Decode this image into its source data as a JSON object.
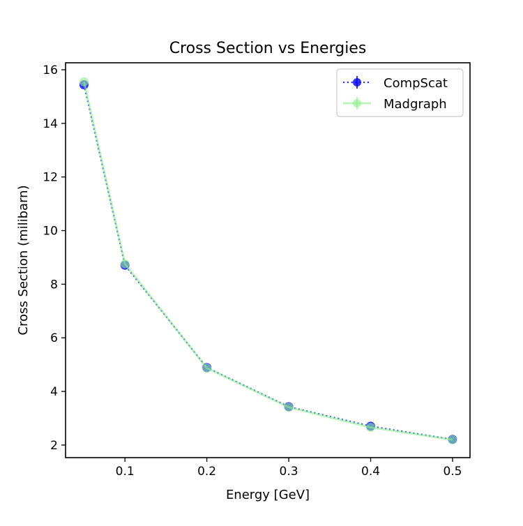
{
  "chart_data": {
    "type": "line",
    "title": "Cross Section vs Energies",
    "xlabel": "Energy [GeV]",
    "ylabel": "Cross Section (milibarn)",
    "xlim": [
      0.0275,
      0.5213
    ],
    "ylim": [
      1.53,
      16.26
    ],
    "xticks": [
      0.1,
      0.2,
      0.3,
      0.4,
      0.5
    ],
    "xtick_labels": [
      "0.1",
      "0.2",
      "0.3",
      "0.4",
      "0.5"
    ],
    "yticks": [
      2,
      4,
      6,
      8,
      10,
      12,
      14,
      16
    ],
    "ytick_labels": [
      "2",
      "4",
      "6",
      "8",
      "10",
      "12",
      "14",
      "16"
    ],
    "grid": false,
    "legend_position": "top-right",
    "series": [
      {
        "name": "CompScat",
        "color": "#0000ff",
        "alpha": 0.8,
        "linestyle": "dotted",
        "marker": "circle",
        "x": [
          0.05,
          0.1,
          0.2,
          0.3,
          0.4,
          0.5
        ],
        "values": [
          15.44,
          8.71,
          4.89,
          3.43,
          2.7,
          2.21
        ]
      },
      {
        "name": "Madgraph",
        "color": "#90ee90",
        "alpha": 0.6,
        "linestyle": "solid",
        "marker": "circle",
        "x": [
          0.05,
          0.1,
          0.2,
          0.3,
          0.4,
          0.5
        ],
        "values": [
          15.55,
          8.76,
          4.87,
          3.41,
          2.66,
          2.2
        ]
      }
    ]
  }
}
